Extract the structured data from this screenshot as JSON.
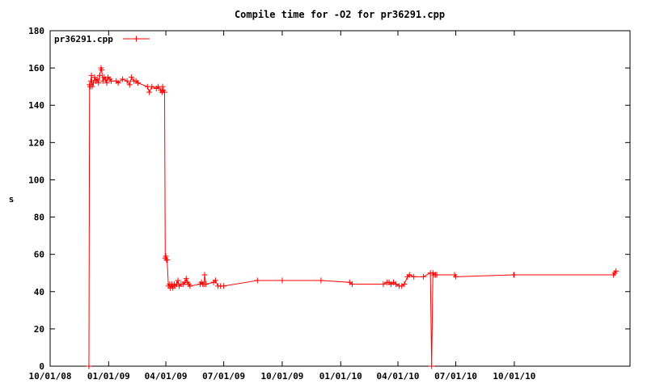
{
  "chart_data": {
    "type": "line",
    "title": "Compile time for -O2 for pr36291.cpp",
    "xlabel": "",
    "ylabel": "s",
    "x_type": "date",
    "xlim": [
      "2008-10-01",
      "2011-04-01"
    ],
    "ylim": [
      0,
      180
    ],
    "xticks": [
      {
        "date": "2008-10-01",
        "label": "10/01/08"
      },
      {
        "date": "2009-01-01",
        "label": "01/01/09"
      },
      {
        "date": "2009-04-01",
        "label": "04/01/09"
      },
      {
        "date": "2009-07-01",
        "label": "07/01/09"
      },
      {
        "date": "2009-10-01",
        "label": "10/01/09"
      },
      {
        "date": "2010-01-01",
        "label": "01/01/10"
      },
      {
        "date": "2010-04-01",
        "label": "04/01/10"
      },
      {
        "date": "2010-07-01",
        "label": "07/01/10"
      },
      {
        "date": "2010-10-01",
        "label": "10/01/10"
      }
    ],
    "yticks": [
      0,
      20,
      40,
      60,
      80,
      100,
      120,
      140,
      160,
      180
    ],
    "grid": false,
    "legend_position": "top-left",
    "series": [
      {
        "name": "pr36291.cpp",
        "color": "#ff0000",
        "marker": "plus",
        "points": [
          [
            "2008-12-01",
            0
          ],
          [
            "2008-12-02",
            151
          ],
          [
            "2008-12-03",
            150
          ],
          [
            "2008-12-04",
            153
          ],
          [
            "2008-12-05",
            156
          ],
          [
            "2008-12-06",
            150
          ],
          [
            "2008-12-08",
            152
          ],
          [
            "2008-12-10",
            155
          ],
          [
            "2008-12-12",
            153
          ],
          [
            "2008-12-14",
            154
          ],
          [
            "2008-12-16",
            152
          ],
          [
            "2008-12-18",
            156
          ],
          [
            "2008-12-20",
            160
          ],
          [
            "2008-12-21",
            159
          ],
          [
            "2008-12-23",
            153
          ],
          [
            "2008-12-25",
            155
          ],
          [
            "2008-12-27",
            154
          ],
          [
            "2008-12-29",
            152
          ],
          [
            "2008-12-31",
            155
          ],
          [
            "2009-01-03",
            154
          ],
          [
            "2009-01-05",
            153
          ],
          [
            "2009-01-13",
            153
          ],
          [
            "2009-01-16",
            152
          ],
          [
            "2009-01-23",
            154
          ],
          [
            "2009-01-30",
            153
          ],
          [
            "2009-02-03",
            151
          ],
          [
            "2009-02-06",
            155
          ],
          [
            "2009-02-10",
            153
          ],
          [
            "2009-02-13",
            153
          ],
          [
            "2009-02-16",
            152
          ],
          [
            "2009-03-03",
            150
          ],
          [
            "2009-03-06",
            147
          ],
          [
            "2009-03-10",
            150
          ],
          [
            "2009-03-17",
            149
          ],
          [
            "2009-03-20",
            150
          ],
          [
            "2009-03-24",
            148
          ],
          [
            "2009-03-26",
            147
          ],
          [
            "2009-03-27",
            150
          ],
          [
            "2009-03-28",
            148
          ],
          [
            "2009-03-30",
            147
          ],
          [
            "2009-03-31",
            58
          ],
          [
            "2009-04-01",
            59
          ],
          [
            "2009-04-02",
            57
          ],
          [
            "2009-04-03",
            57
          ],
          [
            "2009-04-05",
            43
          ],
          [
            "2009-04-07",
            44
          ],
          [
            "2009-04-08",
            42
          ],
          [
            "2009-04-10",
            44
          ],
          [
            "2009-04-11",
            43
          ],
          [
            "2009-04-12",
            42
          ],
          [
            "2009-04-14",
            44
          ],
          [
            "2009-04-15",
            43
          ],
          [
            "2009-04-18",
            44
          ],
          [
            "2009-04-20",
            46
          ],
          [
            "2009-04-22",
            43
          ],
          [
            "2009-04-25",
            44
          ],
          [
            "2009-04-28",
            44
          ],
          [
            "2009-05-01",
            45
          ],
          [
            "2009-05-03",
            47
          ],
          [
            "2009-05-05",
            45
          ],
          [
            "2009-05-07",
            44
          ],
          [
            "2009-05-09",
            43
          ],
          [
            "2009-05-25",
            44
          ],
          [
            "2009-05-27",
            45
          ],
          [
            "2009-05-29",
            44
          ],
          [
            "2009-05-31",
            44
          ],
          [
            "2009-06-01",
            49
          ],
          [
            "2009-06-03",
            44
          ],
          [
            "2009-06-15",
            45
          ],
          [
            "2009-06-18",
            46
          ],
          [
            "2009-06-22",
            43
          ],
          [
            "2009-06-26",
            43
          ],
          [
            "2009-07-01",
            43
          ],
          [
            "2009-08-23",
            46
          ],
          [
            "2009-10-01",
            46
          ],
          [
            "2009-12-01",
            46
          ],
          [
            "2010-01-15",
            45
          ],
          [
            "2010-01-19",
            44
          ],
          [
            "2010-03-09",
            44
          ],
          [
            "2010-03-15",
            45
          ],
          [
            "2010-03-18",
            45
          ],
          [
            "2010-03-21",
            44
          ],
          [
            "2010-03-25",
            45
          ],
          [
            "2010-03-29",
            44
          ],
          [
            "2010-04-03",
            43
          ],
          [
            "2010-04-07",
            43
          ],
          [
            "2010-04-11",
            44
          ],
          [
            "2010-04-16",
            48
          ],
          [
            "2010-04-19",
            49
          ],
          [
            "2010-04-26",
            48
          ],
          [
            "2010-05-11",
            48
          ],
          [
            "2010-05-22",
            50
          ],
          [
            "2010-05-24",
            0
          ],
          [
            "2010-05-26",
            50
          ],
          [
            "2010-05-28",
            49
          ],
          [
            "2010-05-30",
            49
          ],
          [
            "2010-06-01",
            49
          ],
          [
            "2010-06-29",
            49
          ],
          [
            "2010-07-01",
            48
          ],
          [
            "2010-09-30",
            49
          ],
          [
            "2010-10-01",
            49
          ],
          [
            "2011-03-06",
            49
          ],
          [
            "2011-03-08",
            50
          ],
          [
            "2011-03-10",
            51
          ]
        ]
      }
    ]
  }
}
